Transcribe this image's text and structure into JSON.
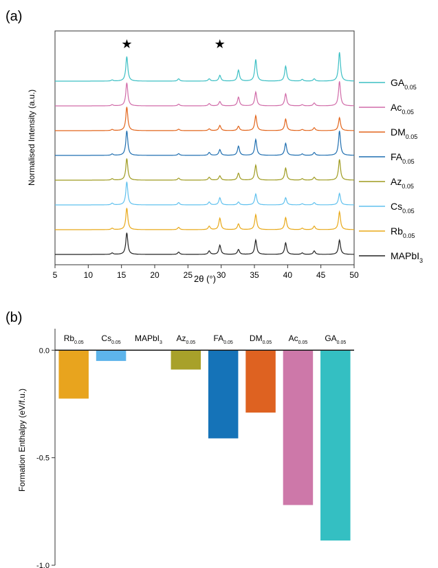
{
  "panel_a": {
    "label": "(a)",
    "ylabel": "Normalised Intensity (a.u.)",
    "xlabel": "2θ (°)",
    "star_symbol": "★"
  },
  "panel_b": {
    "label": "(b)",
    "ylabel": "Formation Enthalpy (eV/f.u.)"
  },
  "chart_data": [
    {
      "type": "line",
      "title": "",
      "xlabel": "2θ (°)",
      "ylabel": "Normalised Intensity (a.u.)",
      "xlim": [
        5,
        50
      ],
      "xticks": [
        5,
        10,
        15,
        20,
        25,
        30,
        35,
        40,
        45,
        50
      ],
      "annotations": [
        {
          "text": "★",
          "x": 15.8
        },
        {
          "text": "★",
          "x": 29.8
        }
      ],
      "legend_position": "right",
      "peaks_2theta": [
        13.6,
        15.8,
        23.6,
        28.2,
        29.8,
        32.6,
        35.2,
        39.7,
        42.2,
        44.0,
        47.8
      ],
      "series": [
        {
          "name_main": "MAPbI",
          "name_sub": "3",
          "color": "#222222",
          "relative_intensities": [
            0.05,
            0.75,
            0.08,
            0.12,
            0.32,
            0.17,
            0.5,
            0.4,
            0.05,
            0.12,
            0.5
          ]
        },
        {
          "name_main": "Rb",
          "name_sub": "0.05",
          "color": "#E8A817",
          "relative_intensities": [
            0.05,
            0.75,
            0.08,
            0.12,
            0.4,
            0.2,
            0.52,
            0.42,
            0.05,
            0.12,
            0.62
          ]
        },
        {
          "name_main": "Cs",
          "name_sub": "0.05",
          "color": "#5EC0EE",
          "relative_intensities": [
            0.06,
            0.8,
            0.08,
            0.1,
            0.25,
            0.1,
            0.38,
            0.25,
            0.04,
            0.08,
            0.4
          ]
        },
        {
          "name_main": "Az",
          "name_sub": "0.05",
          "color": "#9E9A1E",
          "relative_intensities": [
            0.05,
            0.75,
            0.07,
            0.1,
            0.15,
            0.24,
            0.52,
            0.42,
            0.05,
            0.1,
            0.72
          ]
        },
        {
          "name_main": "FA",
          "name_sub": "0.05",
          "color": "#1E6EB0",
          "relative_intensities": [
            0.05,
            0.85,
            0.06,
            0.1,
            0.2,
            0.32,
            0.55,
            0.42,
            0.05,
            0.1,
            0.85
          ]
        },
        {
          "name_main": "DM",
          "name_sub": "0.05",
          "color": "#E2641A",
          "relative_intensities": [
            0.04,
            0.82,
            0.05,
            0.06,
            0.18,
            0.15,
            0.52,
            0.4,
            0.04,
            0.1,
            0.45
          ]
        },
        {
          "name_main": "Ac",
          "name_sub": "0.05",
          "color": "#D06AA8",
          "relative_intensities": [
            0.04,
            0.8,
            0.06,
            0.08,
            0.15,
            0.3,
            0.48,
            0.42,
            0.04,
            0.1,
            0.85
          ]
        },
        {
          "name_main": "GA",
          "name_sub": "0.05",
          "color": "#3BBFC4",
          "relative_intensities": [
            0.04,
            0.85,
            0.08,
            0.08,
            0.2,
            0.38,
            0.75,
            0.52,
            0.06,
            0.08,
            1.0
          ]
        }
      ]
    },
    {
      "type": "bar",
      "title": "",
      "xlabel": "",
      "ylabel": "Formation Enthalpy (eV/f.u.)",
      "ylim": [
        -1.0,
        0.1
      ],
      "yticks": [
        0.0,
        -0.5,
        -1.0
      ],
      "ytick_labels": [
        "0.0",
        "-0.5",
        "-1.0"
      ],
      "categories": [
        {
          "main": "Rb",
          "sub": "0.05"
        },
        {
          "main": "Cs",
          "sub": "0.05"
        },
        {
          "main": "MAPbI",
          "sub": "3"
        },
        {
          "main": "Az",
          "sub": "0.05"
        },
        {
          "main": "FA",
          "sub": "0.05"
        },
        {
          "main": "DM",
          "sub": "0.05"
        },
        {
          "main": "Ac",
          "sub": "0.05"
        },
        {
          "main": "GA",
          "sub": "0.05"
        }
      ],
      "values": [
        -0.225,
        -0.05,
        0.0,
        -0.09,
        -0.41,
        -0.29,
        -0.72,
        -0.885
      ],
      "colors": [
        "#E8A41E",
        "#5DB4EB",
        "#cccccc",
        "#A8A12A",
        "#1573B8",
        "#DE6221",
        "#CD78A9",
        "#34BFC2"
      ]
    }
  ]
}
